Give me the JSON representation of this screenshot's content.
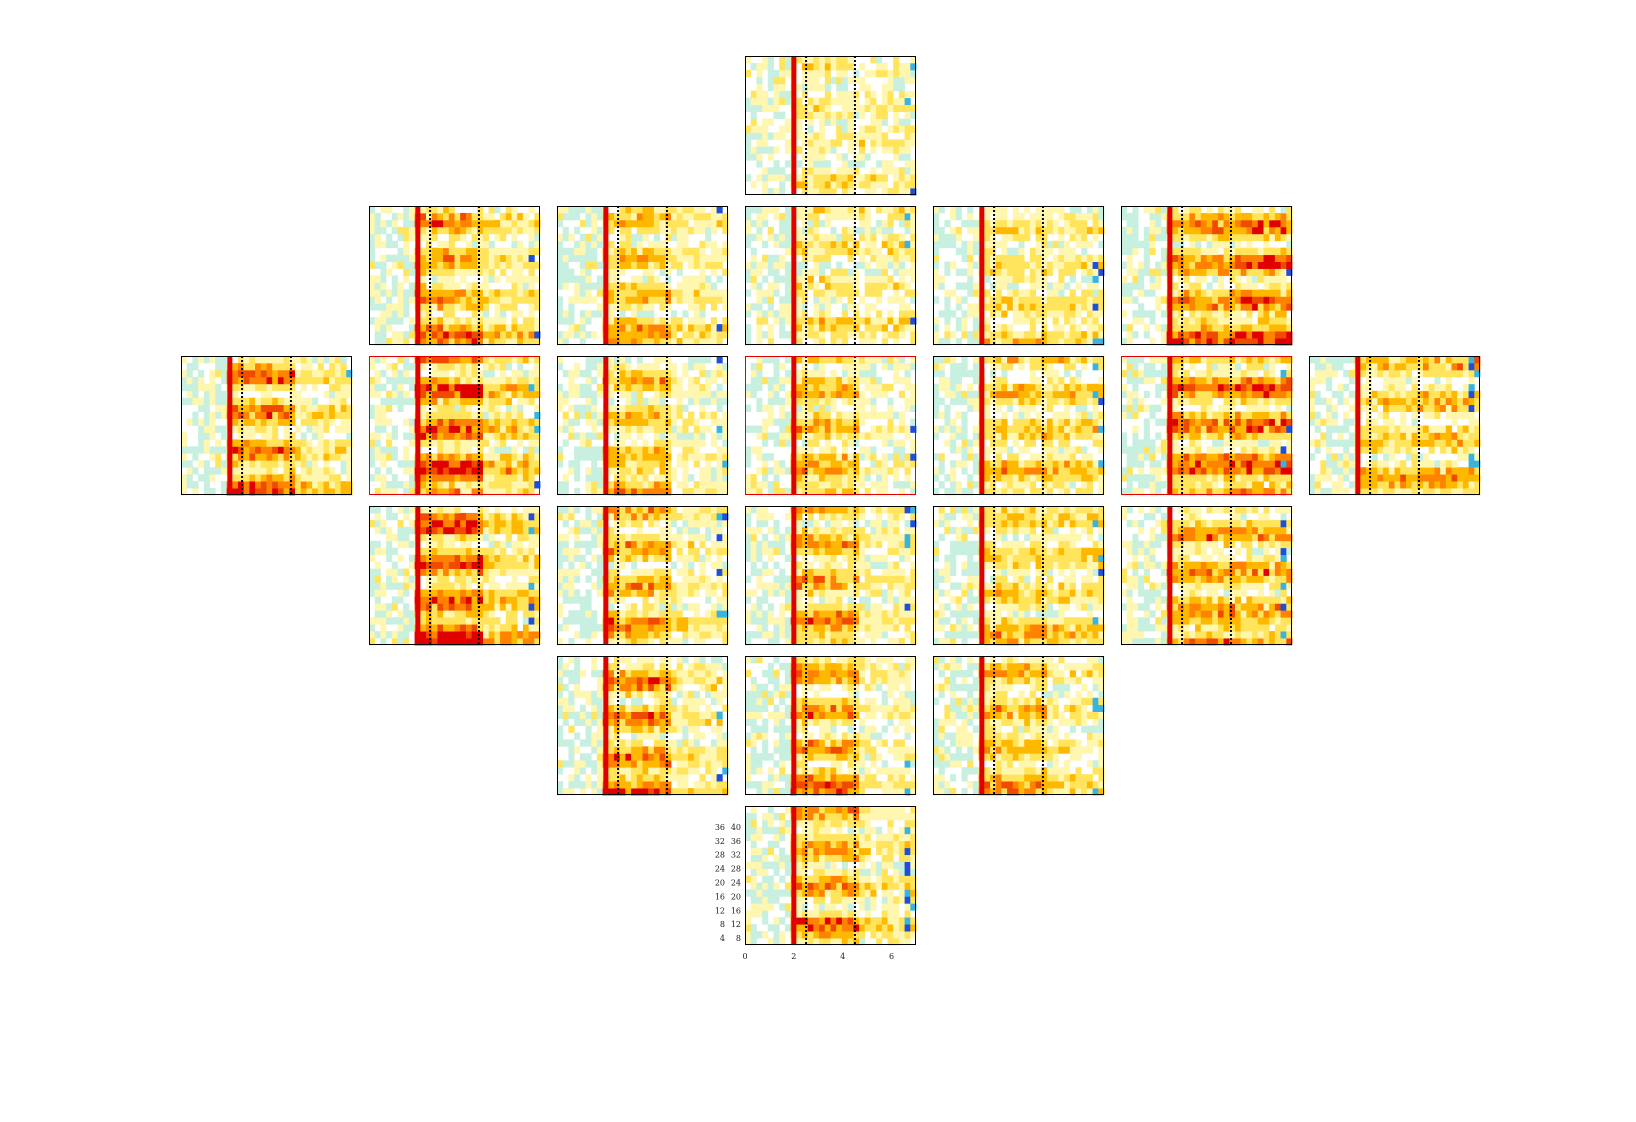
{
  "chart_data": {
    "type": "heatmap",
    "layout": "topographic electrode grid of time-frequency heatmaps",
    "time_axis": {
      "ticks": [
        0,
        2,
        4,
        6
      ],
      "range": [
        0,
        7
      ]
    },
    "freq_axis": {
      "inner_ticks": [
        4,
        8,
        12,
        16,
        20,
        24,
        28,
        32,
        36
      ],
      "outer_ticks": [
        8,
        12,
        16,
        20,
        24,
        28,
        32,
        36,
        40
      ],
      "range": [
        2,
        42
      ]
    },
    "markers": {
      "event_time": 2,
      "dotted_times": [
        2.5,
        4.5
      ]
    },
    "colormap": [
      "#1f4fd8",
      "#39b3e0",
      "#c8f0e0",
      "#ffffff",
      "#fff6b0",
      "#ffe45c",
      "#ffb800",
      "#ff8200",
      "#f04a00",
      "#e00000"
    ],
    "panel_rows": [
      {
        "panels": [
          {
            "id": "p00",
            "strength": 0.25,
            "late": 0.2,
            "highlight": false
          }
        ]
      },
      {
        "panels": [
          {
            "id": "p10",
            "strength": 0.65,
            "late": 0.35,
            "highlight": false
          },
          {
            "id": "p11",
            "strength": 0.5,
            "late": 0.3,
            "highlight": false
          },
          {
            "id": "p12",
            "strength": 0.3,
            "late": 0.25,
            "highlight": false
          },
          {
            "id": "p13",
            "strength": 0.35,
            "late": 0.3,
            "highlight": false
          },
          {
            "id": "p14",
            "strength": 0.7,
            "late": 0.85,
            "highlight": false
          }
        ]
      },
      {
        "panels": [
          {
            "id": "p20",
            "strength": 0.75,
            "late": 0.35,
            "highlight": false
          },
          {
            "id": "p21",
            "strength": 0.95,
            "late": 0.5,
            "highlight": true
          },
          {
            "id": "p22",
            "strength": 0.55,
            "late": 0.15,
            "highlight": false
          },
          {
            "id": "p23",
            "strength": 0.55,
            "late": 0.15,
            "highlight": true
          },
          {
            "id": "p24",
            "strength": 0.45,
            "late": 0.45,
            "highlight": false
          },
          {
            "id": "p25",
            "strength": 0.75,
            "late": 0.85,
            "highlight": true
          },
          {
            "id": "p26",
            "strength": 0.45,
            "late": 0.55,
            "highlight": false
          }
        ]
      },
      {
        "panels": [
          {
            "id": "p30",
            "strength": 0.95,
            "late": 0.5,
            "highlight": false
          },
          {
            "id": "p31",
            "strength": 0.6,
            "late": 0.25,
            "highlight": false
          },
          {
            "id": "p32",
            "strength": 0.6,
            "late": 0.25,
            "highlight": false
          },
          {
            "id": "p33",
            "strength": 0.45,
            "late": 0.4,
            "highlight": false
          },
          {
            "id": "p34",
            "strength": 0.65,
            "late": 0.65,
            "highlight": false
          }
        ]
      },
      {
        "panels": [
          {
            "id": "p40",
            "strength": 0.75,
            "late": 0.3,
            "highlight": false
          },
          {
            "id": "p41",
            "strength": 0.65,
            "late": 0.2,
            "highlight": false
          },
          {
            "id": "p42",
            "strength": 0.55,
            "late": 0.25,
            "highlight": false
          }
        ]
      },
      {
        "panels": [
          {
            "id": "p50",
            "strength": 0.65,
            "late": 0.3,
            "highlight": false
          }
        ]
      }
    ]
  }
}
